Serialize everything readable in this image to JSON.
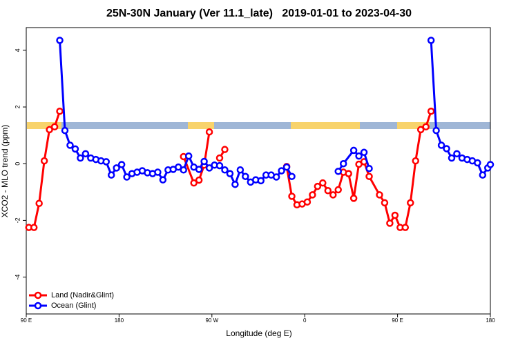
{
  "chart_data": {
    "type": "line",
    "title": "25N-30N January (Ver 11.1_late)   2019-01-01 to 2023-04-30",
    "x_label": "Longitude (deg E)",
    "y_label": "XCO2 - MLO trend (ppm)",
    "xlim": [
      90,
      540
    ],
    "ylim": [
      -5.3,
      4.8
    ],
    "xticks": [
      {
        "value": 90,
        "label": "90 E"
      },
      180,
      {
        "value": 270,
        "label": "90 W"
      },
      {
        "value": 360,
        "label": "0"
      },
      {
        "value": 450,
        "label": "90 E"
      },
      {
        "value": 540,
        "label": "180"
      }
    ],
    "yticks": [
      -4,
      -2,
      0,
      2,
      4
    ],
    "legend": "bottom-left",
    "series": [
      {
        "name": "Land (Nadir&Glint)",
        "color": "#ff0000",
        "x": [
          92.5,
          97.5,
          102.5,
          107.5,
          112.5,
          117.5,
          122.5,
          null,
          242.5,
          252.5,
          257.5,
          262.5,
          267.5,
          null,
          277.5,
          282.5,
          null,
          342.5,
          347.5,
          352.5,
          357.5,
          362.5,
          367.5,
          372.5,
          377.5,
          382.5,
          387.5,
          392.5,
          397.5,
          402.5,
          407.5,
          412.5,
          417.5,
          422.5,
          432.5,
          437.5,
          442.5,
          447.5,
          452.5,
          457.5,
          462.5,
          467.5,
          472.5,
          477.5,
          482.5
        ],
        "values": [
          -2.25,
          -2.25,
          -1.4,
          0.1,
          1.2,
          1.3,
          1.85,
          null,
          0.25,
          -0.68,
          -0.58,
          -0.05,
          1.12,
          null,
          0.2,
          0.5,
          null,
          -0.1,
          -1.15,
          -1.45,
          -1.42,
          -1.35,
          -1.1,
          -0.8,
          -0.68,
          -0.95,
          -1.1,
          -0.92,
          -0.3,
          -0.35,
          -1.22,
          -0.02,
          0.07,
          -0.45,
          -1.1,
          -1.38,
          -2.1,
          -1.82,
          -2.25,
          -2.25,
          -1.38,
          0.1,
          1.2,
          1.3,
          1.85
        ]
      },
      {
        "name": "Ocean (Glint)",
        "color": "#0000ff",
        "x": [
          122.5,
          127.5,
          132.5,
          137.5,
          142.5,
          147.5,
          152.5,
          157.5,
          162.5,
          167.5,
          172.5,
          177.5,
          182.5,
          187.5,
          192.5,
          197.5,
          202.5,
          207.5,
          212.5,
          217.5,
          222.5,
          227.5,
          232.5,
          237.5,
          242.5,
          247.5,
          252.5,
          257.5,
          262.5,
          267.5,
          272.5,
          277.5,
          282.5,
          287.5,
          292.5,
          297.5,
          302.5,
          307.5,
          312.5,
          317.5,
          322.5,
          327.5,
          332.5,
          337.5,
          342.5,
          347.5,
          null,
          392.5,
          397.5,
          407.5,
          412.5,
          417.5,
          422.5,
          null,
          482.5,
          487.5,
          492.5,
          497.5,
          502.5,
          507.5,
          512.5,
          517.5,
          522.5,
          527.5,
          532.5,
          537.5,
          540
        ],
        "values": [
          4.35,
          1.17,
          0.65,
          0.52,
          0.2,
          0.35,
          0.2,
          0.15,
          0.1,
          0.07,
          -0.4,
          -0.15,
          -0.03,
          -0.47,
          -0.35,
          -0.3,
          -0.25,
          -0.32,
          -0.35,
          -0.3,
          -0.57,
          -0.22,
          -0.2,
          -0.12,
          -0.22,
          0.27,
          -0.12,
          -0.2,
          0.08,
          -0.15,
          -0.05,
          -0.07,
          -0.22,
          -0.35,
          -0.73,
          -0.22,
          -0.45,
          -0.65,
          -0.57,
          -0.6,
          -0.4,
          -0.4,
          -0.47,
          -0.25,
          -0.12,
          -0.45,
          null,
          -0.27,
          0.0,
          0.47,
          0.27,
          0.4,
          -0.17,
          null,
          4.35,
          1.17,
          0.65,
          0.53,
          0.2,
          0.35,
          0.2,
          0.15,
          0.1,
          0.03,
          -0.4,
          -0.15,
          -0.03
        ]
      }
    ]
  }
}
